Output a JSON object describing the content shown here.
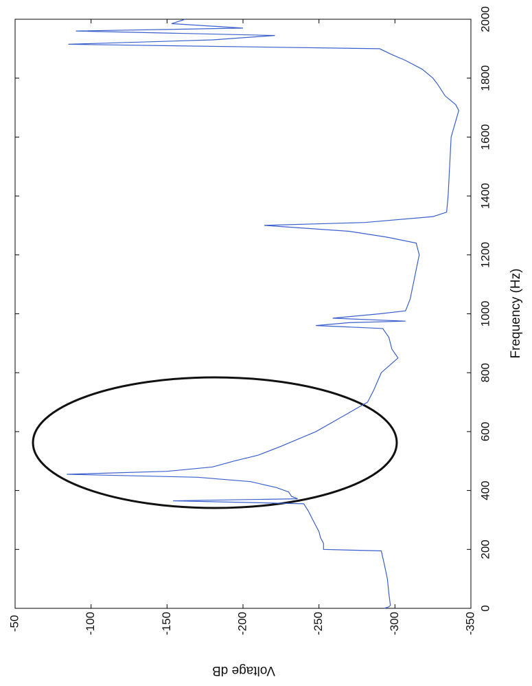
{
  "chart_data": {
    "type": "line",
    "x_label": "Frequency (Hz)",
    "y_label": "Voltage dB",
    "x": [
      0,
      5,
      10,
      50,
      100,
      150,
      195,
      200,
      220,
      240,
      260,
      280,
      300,
      330,
      355,
      365,
      372,
      380,
      395,
      410,
      430,
      445,
      455,
      465,
      480,
      500,
      520,
      550,
      600,
      650,
      700,
      740,
      800,
      850,
      880,
      920,
      950,
      960,
      970,
      975,
      985,
      1000,
      1010,
      1050,
      1100,
      1150,
      1200,
      1240,
      1260,
      1280,
      1300,
      1310,
      1330,
      1345,
      1400,
      1500,
      1600,
      1690,
      1710,
      1740,
      1780,
      1800,
      1830,
      1860,
      1880,
      1900,
      1915,
      1930,
      1945,
      1960,
      1970,
      1985,
      2000
    ],
    "values": [
      -293,
      -296,
      -297,
      -296,
      -295,
      -293,
      -291,
      -253,
      -253,
      -251,
      -250,
      -248,
      -246,
      -243,
      -240,
      -154,
      -236,
      -232,
      -230,
      -222,
      -205,
      -170,
      -84,
      -150,
      -180,
      -194,
      -210,
      -225,
      -248,
      -265,
      -282,
      -286,
      -291,
      -302,
      -298,
      -296,
      -292,
      -248,
      -270,
      -307,
      -259,
      -290,
      -307,
      -310,
      -312,
      -314,
      -316,
      -314,
      -295,
      -270,
      -214,
      -280,
      -325,
      -334,
      -335,
      -336,
      -337,
      -342,
      -340,
      -333,
      -328,
      -325,
      -318,
      -307,
      -298,
      -290,
      -85,
      -180,
      -221,
      -90,
      -200,
      -153,
      -162
    ],
    "color": "#3a5fcd",
    "xlim": [
      0,
      2000
    ],
    "ylim": [
      -350,
      -50
    ],
    "xticks": [
      0,
      200,
      400,
      600,
      800,
      1000,
      1200,
      1400,
      1600,
      1800,
      2000
    ],
    "yticks": [
      -50,
      -100,
      -150,
      -200,
      -250,
      -300,
      -350
    ]
  }
}
